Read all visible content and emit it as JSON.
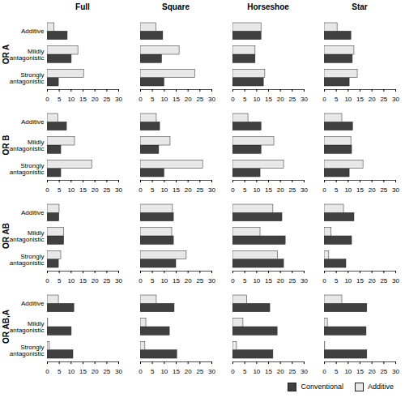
{
  "chart_data": {
    "type": "bar",
    "orientation": "horizontal",
    "legend": "bottom-right",
    "facet_columns": [
      "Full",
      "Square",
      "Horseshoe",
      "Star"
    ],
    "facet_rows": [
      "OR A",
      "OR B",
      "OR AB",
      "OR AB,A"
    ],
    "categories": [
      "Additive",
      "Mildly antagonistic",
      "Strongly antagonistic"
    ],
    "xlim": [
      0,
      30
    ],
    "xticks": [
      0,
      5,
      10,
      15,
      20,
      25,
      30
    ],
    "series": [
      {
        "name": "Conventional",
        "color": "#404040",
        "values": [
          [
            [
              8.5,
              10.2,
              4.8
            ],
            [
              9.5,
              9,
              10
            ],
            [
              12,
              9.5,
              13
            ],
            [
              11.3,
              11.9,
              10.6
            ]
          ],
          [
            [
              8.2,
              5.8,
              5.8
            ],
            [
              8.2,
              7.8,
              10
            ],
            [
              12,
              12,
              11.6
            ],
            [
              12,
              11.6,
              10.6
            ]
          ],
          [
            [
              5,
              7,
              4.8
            ],
            [
              14,
              14,
              15
            ],
            [
              20.8,
              22.2,
              21.5
            ],
            [
              12.6,
              11.6,
              9.2
            ]
          ],
          [
            [
              11.3,
              10.2,
              10.9
            ],
            [
              14.3,
              12.3,
              15.4
            ],
            [
              15.7,
              18.8,
              17
            ],
            [
              18,
              17.7,
              18
            ]
          ]
        ]
      },
      {
        "name": "Additive",
        "color": "#e8e8e8",
        "values": [
          [
            [
              3,
              13,
              15.4
            ],
            [
              6.7,
              16.4,
              23
            ],
            [
              12,
              9.5,
              13.6
            ],
            [
              5.5,
              12.6,
              14
            ]
          ],
          [
            [
              4.5,
              11.6,
              18.8
            ],
            [
              6.8,
              12.6,
              26.3
            ],
            [
              6.5,
              17.4,
              21.5
            ],
            [
              7.5,
              11.3,
              16.4
            ]
          ],
          [
            [
              5.1,
              7,
              5.8
            ],
            [
              13.6,
              13.3,
              19.4
            ],
            [
              17,
              11.6,
              19
            ],
            [
              8.2,
              3,
              2
            ]
          ],
          [
            [
              4.8,
              0.3,
              1
            ],
            [
              6.8,
              2.4,
              2
            ],
            [
              6,
              4.4,
              1.7
            ],
            [
              7.5,
              1.4,
              0.3
            ]
          ]
        ]
      }
    ]
  }
}
